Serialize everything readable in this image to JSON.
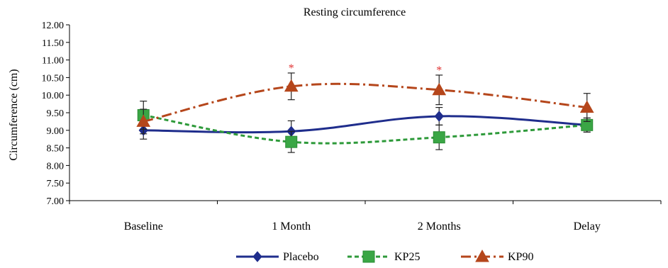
{
  "chart_data": {
    "type": "line",
    "title": "Resting circumference",
    "xlabel": "",
    "ylabel": "Circumference (cm)",
    "ylim": [
      7.0,
      12.0
    ],
    "y_ticks": [
      "7.00",
      "7.50",
      "8.00",
      "8.50",
      "9.00",
      "9.50",
      "10.00",
      "10.50",
      "11.00",
      "11.50",
      "12.00"
    ],
    "categories": [
      "Baseline",
      "1 Month",
      "2 Months",
      "Delay"
    ],
    "grid": false,
    "legend_position": "bottom",
    "series": [
      {
        "name": "Placebo",
        "values": [
          9.0,
          8.97,
          9.4,
          9.15
        ],
        "error": [
          0.25,
          0.3,
          0.25,
          0.2
        ],
        "color": "#1f2d8c",
        "marker": "diamond",
        "dash": "solid"
      },
      {
        "name": "KP25",
        "values": [
          9.43,
          8.67,
          8.8,
          9.15
        ],
        "error": [
          0.4,
          0.3,
          0.35,
          0.2
        ],
        "color": "#2e9a3a",
        "marker": "square",
        "dash": "dashed"
      },
      {
        "name": "KP90",
        "values": [
          9.25,
          10.25,
          10.15,
          9.65
        ],
        "error": [
          0.35,
          0.38,
          0.42,
          0.4
        ],
        "color": "#b5461b",
        "marker": "triangle",
        "dash": "dashdot"
      }
    ],
    "annotations": [
      {
        "text": "*",
        "category": "1 Month",
        "color": "#e03030"
      },
      {
        "text": "*",
        "category": "2 Months",
        "color": "#e03030"
      }
    ]
  }
}
